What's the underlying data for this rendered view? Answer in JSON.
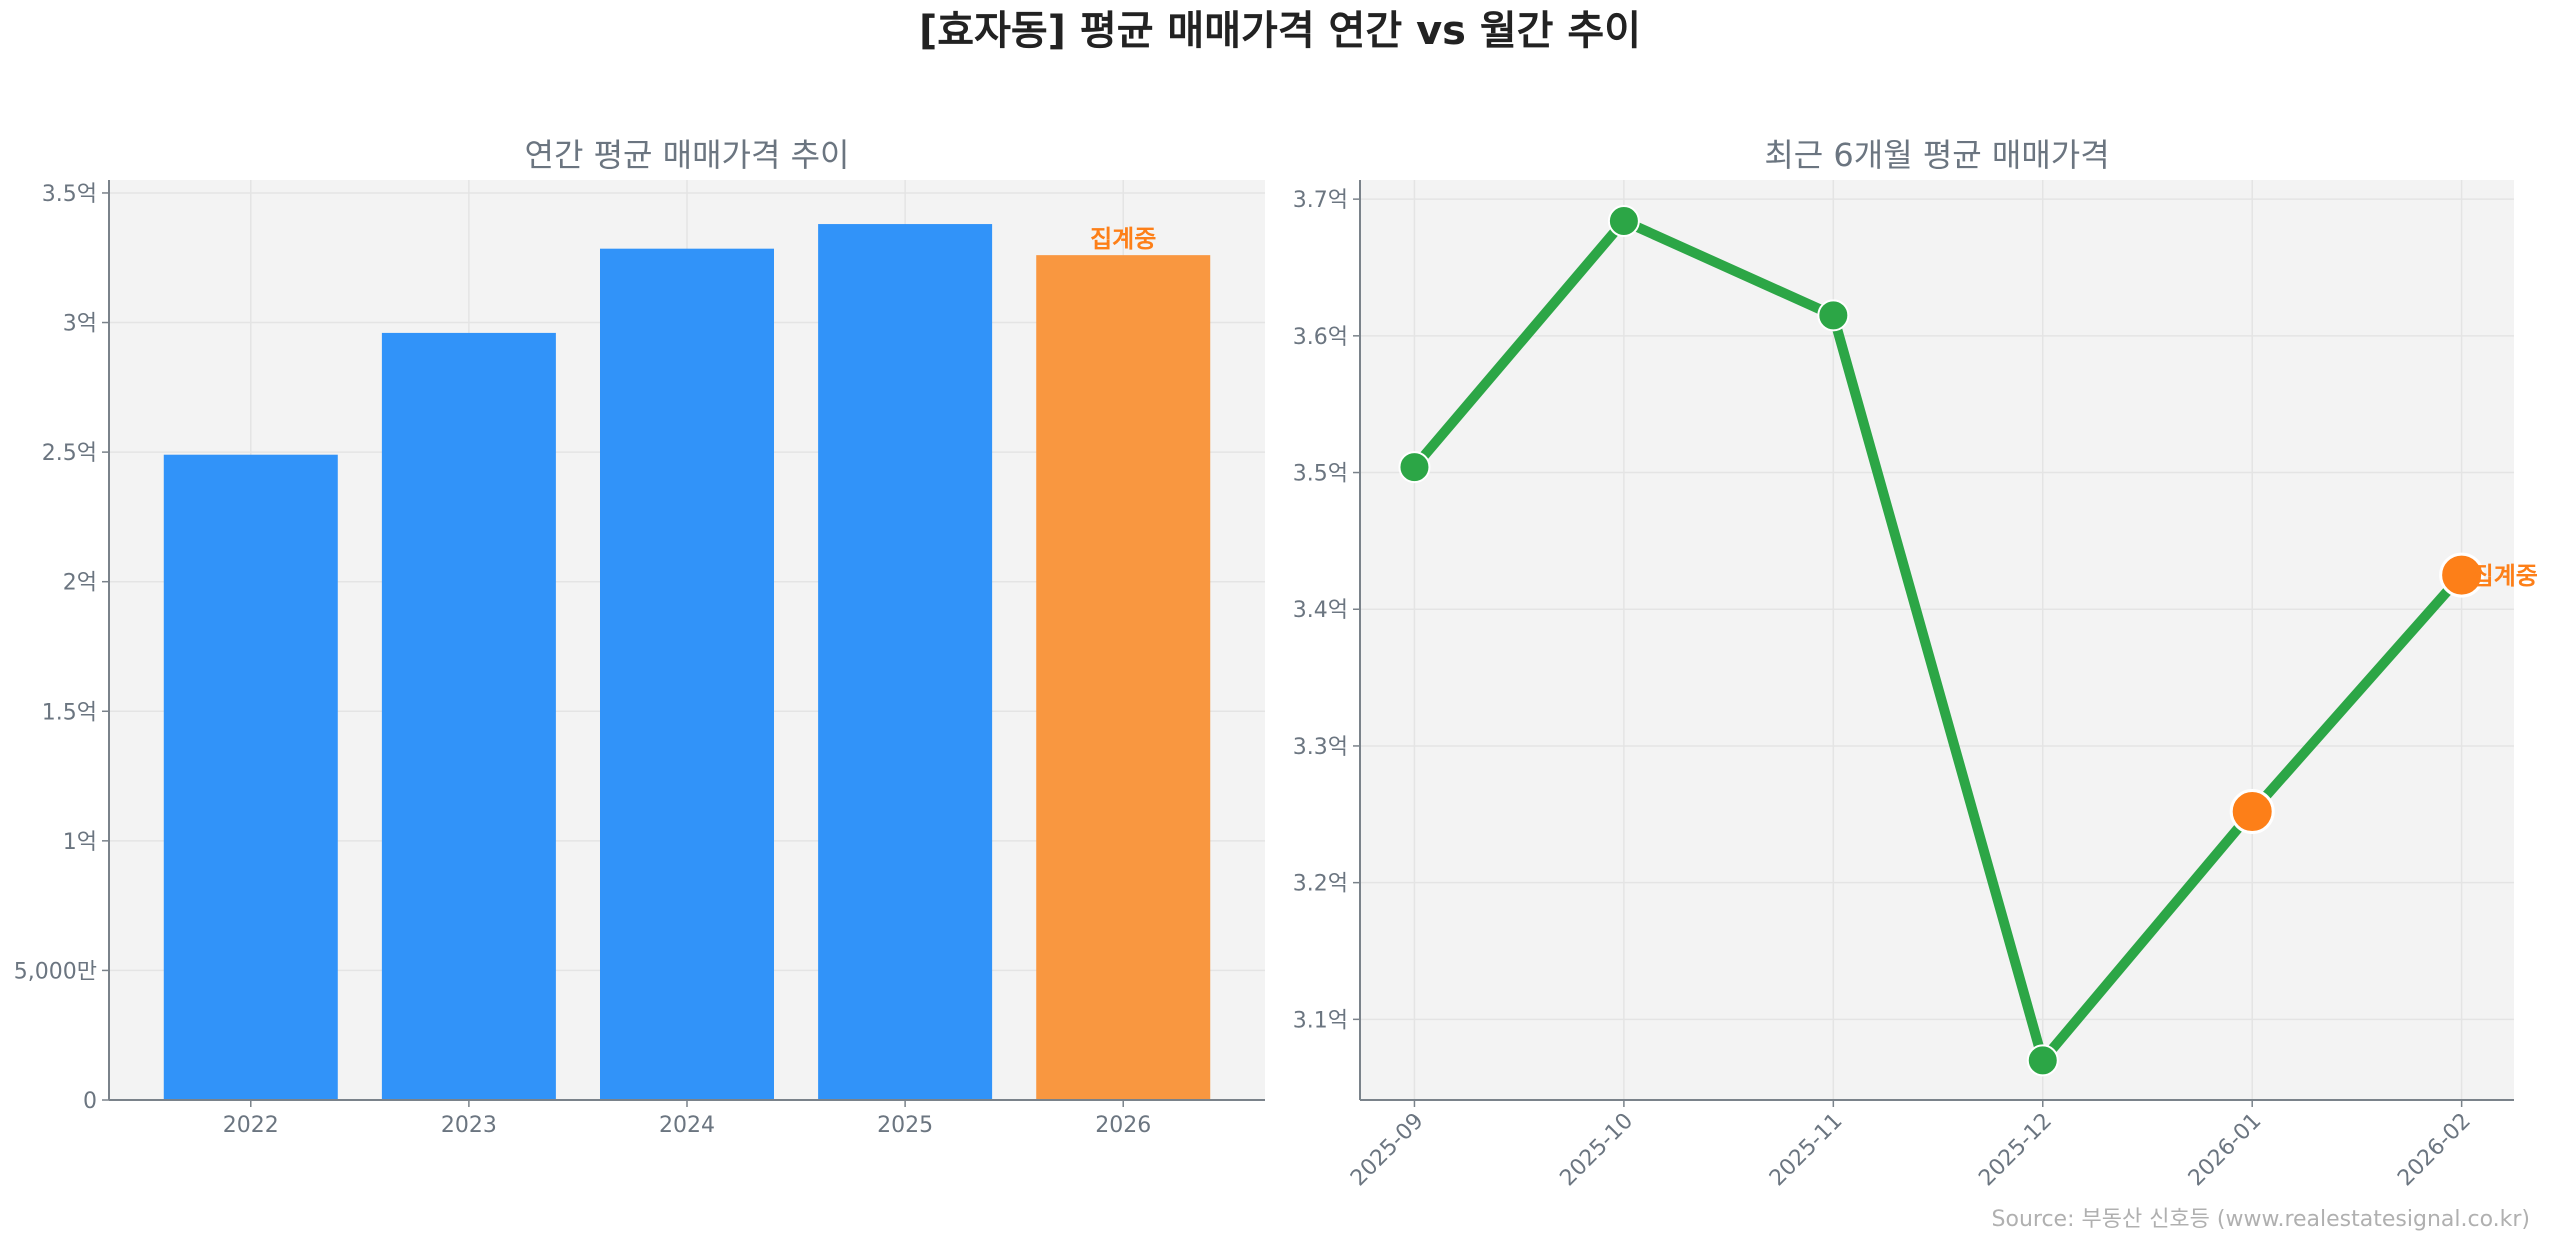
{
  "title": "[효자동] 평균 매매가격 연간 vs 월간 추이",
  "source": "Source: 부동산 신호등 (www.realestatesignal.co.kr)",
  "colors": {
    "bar": "#3193f9",
    "bar_partial": "#f99740",
    "line": "#2ca646",
    "partial_marker": "#fd7f18",
    "annotation": "#fd7f18",
    "plot_bg": "#f3f3f3"
  },
  "chart_data": [
    {
      "type": "bar",
      "title": "연간 평균 매매가격 추이",
      "categories": [
        "2022",
        "2023",
        "2024",
        "2025",
        "2026"
      ],
      "values": [
        2.49,
        2.96,
        3.285,
        3.38,
        3.26
      ],
      "unit": "억",
      "ylim": [
        0,
        3.55
      ],
      "yticks": [
        0,
        0.5,
        1,
        1.5,
        2,
        2.5,
        3,
        3.5
      ],
      "ytick_labels": [
        "0",
        "5,000만",
        "1억",
        "1.5억",
        "2억",
        "2.5억",
        "3억",
        "3.5억"
      ],
      "partial_index": 4,
      "annotation": "집계중",
      "grid": true
    },
    {
      "type": "line",
      "title": "최근 6개월 평균 매매가격",
      "categories": [
        "2025-09",
        "2025-10",
        "2025-11",
        "2025-12",
        "2026-01",
        "2026-02"
      ],
      "values": [
        3.504,
        3.684,
        3.615,
        3.07,
        3.252,
        3.425
      ],
      "unit": "억",
      "ylim": [
        3.041,
        3.714
      ],
      "yticks": [
        3.1,
        3.2,
        3.3,
        3.4,
        3.5,
        3.6,
        3.7
      ],
      "ytick_labels": [
        "3.1억",
        "3.2억",
        "3.3억",
        "3.4억",
        "3.5억",
        "3.6억",
        "3.7억"
      ],
      "partial_indices": [
        4,
        5
      ],
      "annotation": "집계중",
      "grid": true
    }
  ]
}
